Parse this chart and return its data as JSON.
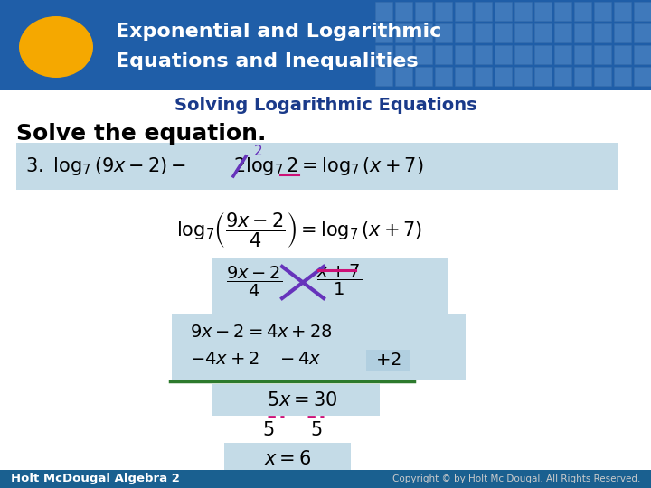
{
  "title_line1": "Exponential and Logarithmic",
  "title_line2": "Equations and Inequalities",
  "subtitle": "Solving Logarithmic Equations",
  "solve_text": "Solve the equation.",
  "footer_left": "Holt McDougal Algebra 2",
  "footer_right": "Copyright © by Holt Mc Dougal. All Rights Reserved.",
  "header_bg": "#1f5ea8",
  "body_bg": "#ffffff",
  "title_color": "#ffffff",
  "subtitle_color": "#1a3a8a",
  "solve_color": "#000000",
  "footer_bg": "#1a6090",
  "footer_text_color": "#ffffff",
  "footer_right_color": "#cccccc",
  "oval_color": "#f5a800",
  "teal_box_color": "#b0cfe0",
  "green_line_color": "#2d7a2d",
  "pink_color": "#cc1177",
  "purple_color": "#6633bb",
  "equation_color": "#000000",
  "grid_color": "#4a80c0"
}
